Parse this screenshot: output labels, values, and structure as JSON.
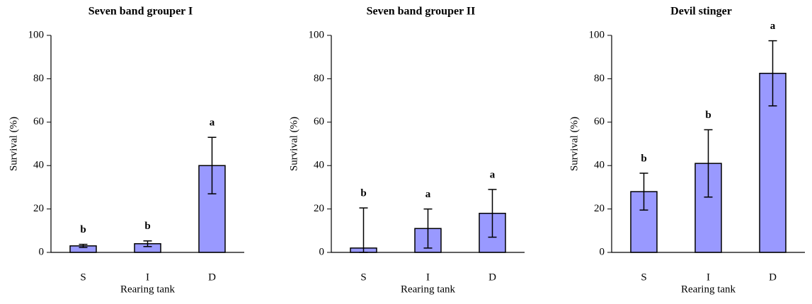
{
  "chart_data": [
    {
      "type": "bar",
      "title": "Seven band grouper I",
      "xlabel": "Rearing tank",
      "ylabel": "Survival (%)",
      "categories": [
        "S",
        "I",
        "D"
      ],
      "values": [
        3,
        4,
        40
      ],
      "errors": [
        0.7,
        1.3,
        13
      ],
      "annotations": [
        "b",
        "b",
        "a"
      ],
      "color": "#9999ff",
      "ylim": [
        0,
        100
      ],
      "yticks": [
        0,
        20,
        40,
        60,
        80,
        100
      ]
    },
    {
      "type": "bar",
      "title": "Seven band grouper II",
      "xlabel": "Rearing tank",
      "ylabel": "Survival (%)",
      "categories": [
        "S",
        "I",
        "D"
      ],
      "values": [
        2,
        11,
        18
      ],
      "errors": [
        18.5,
        9,
        11
      ],
      "annotations": [
        "b",
        "a",
        "a"
      ],
      "color": "#9999ff",
      "ylim": [
        0,
        100
      ],
      "yticks": [
        0,
        20,
        40,
        60,
        80,
        100
      ]
    },
    {
      "type": "bar",
      "title": "Devil stinger",
      "xlabel": "Rearing tank",
      "ylabel": "Survival (%)",
      "categories": [
        "S",
        "I",
        "D"
      ],
      "values": [
        28,
        41,
        82.5
      ],
      "errors": [
        8.5,
        15.5,
        15
      ],
      "annotations": [
        "b",
        "b",
        "a"
      ],
      "color": "#9999ff",
      "ylim": [
        0,
        100
      ],
      "yticks": [
        0,
        20,
        40,
        60,
        80,
        100
      ]
    }
  ]
}
